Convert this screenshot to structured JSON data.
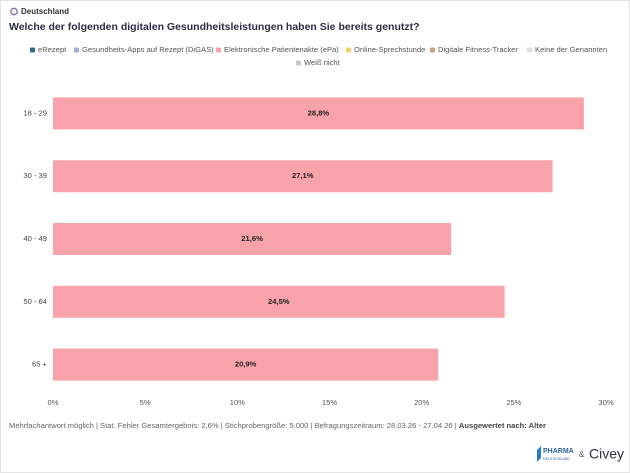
{
  "header": {
    "region": "Deutschland",
    "title": "Welche der folgenden digitalen Gesundheitsleistungen haben Sie bereits genutzt?"
  },
  "chart_data": {
    "type": "bar",
    "orientation": "horizontal",
    "categories": [
      "18 - 29",
      "30 - 39",
      "40 - 49",
      "50 - 64",
      "65 +"
    ],
    "series": [
      {
        "name": "eRezept",
        "color": "#2b6c8f",
        "values": [
          null,
          null,
          null,
          null,
          null
        ]
      },
      {
        "name": "Gesundheits-Apps auf Rezept (DiGAS)",
        "color": "#9db0dc",
        "values": [
          null,
          null,
          null,
          null,
          null
        ]
      },
      {
        "name": "Elektronische Patientenakte (ePa)",
        "color": "#f8a3aa",
        "values": [
          28.8,
          27.1,
          21.6,
          24.5,
          20.9
        ],
        "value_labels": [
          "28,8%",
          "27,1%",
          "21,6%",
          "24,5%",
          "20,9%"
        ]
      },
      {
        "name": "Online-Sprechstunde",
        "color": "#f2d46e",
        "values": [
          null,
          null,
          null,
          null,
          null
        ]
      },
      {
        "name": "Digitale Fitness-Tracker",
        "color": "#c9a27c",
        "values": [
          null,
          null,
          null,
          null,
          null
        ]
      },
      {
        "name": "Keine der Genannten",
        "color": "#dddddd",
        "values": [
          null,
          null,
          null,
          null,
          null
        ]
      },
      {
        "name": "Weiß nicht",
        "color": "#c8c8c8",
        "values": [
          null,
          null,
          null,
          null,
          null
        ]
      }
    ],
    "xlim": [
      0,
      30
    ],
    "xticks": [
      {
        "value": 0,
        "label": "0%"
      },
      {
        "value": 5,
        "label": "5%"
      },
      {
        "value": 10,
        "label": "10%"
      },
      {
        "value": 15,
        "label": "15%"
      },
      {
        "value": 20,
        "label": "20%"
      },
      {
        "value": 25,
        "label": "25%"
      },
      {
        "value": 30,
        "label": "30%"
      }
    ],
    "grid": false
  },
  "footer": {
    "note": "Mehrfachantwort möglich | Stat. Fehler Gesamtergebnis: 2,6% | Stichprobengröße: 5.000 | Befragungszeitraum: 28.03.26 - 27.04.26 | ",
    "note_bold": "Ausgewertet nach: Alter",
    "logo": {
      "brand_top": "PHARMA",
      "brand_bottom": "DEUTSCHLAND",
      "and": "&",
      "partner": "Civey"
    }
  }
}
